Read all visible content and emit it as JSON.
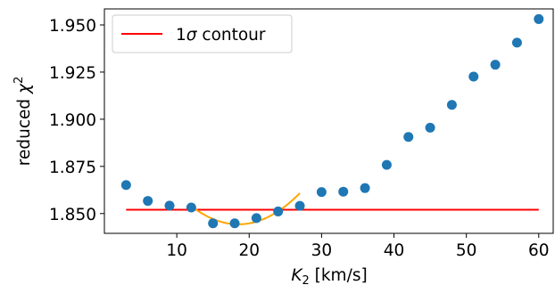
{
  "chart_data": {
    "type": "scatter",
    "title": "",
    "xlabel": {
      "italic": "K",
      "sub": "2",
      "rest": " [km/s]"
    },
    "ylabel": {
      "text": "reduced ",
      "symbol": "χ",
      "sup": "2"
    },
    "xlim": [
      0,
      62
    ],
    "ylim": [
      1.8395,
      1.9585
    ],
    "x_ticks": [
      10,
      20,
      30,
      40,
      50,
      60
    ],
    "y_ticks": [
      1.85,
      1.875,
      1.9,
      1.925,
      1.95
    ],
    "y_tick_labels": [
      "1.850",
      "1.875",
      "1.900",
      "1.925",
      "1.950"
    ],
    "points": {
      "color": "#1f77b4",
      "x": [
        3,
        6,
        9,
        12,
        15,
        18,
        21,
        24,
        27,
        30,
        33,
        36,
        39,
        42,
        45,
        48,
        51,
        54,
        57,
        60
      ],
      "y": [
        1.8651,
        1.8567,
        1.8542,
        1.8532,
        1.8448,
        1.8448,
        1.8476,
        1.8511,
        1.8541,
        1.8614,
        1.8616,
        1.8635,
        1.8758,
        1.8906,
        1.8955,
        1.9076,
        1.9226,
        1.9289,
        1.9406,
        1.9531
      ]
    },
    "fit_curve": {
      "color": "#ffa500",
      "x_range": [
        12,
        27
      ],
      "vertex": [
        18.5,
        1.8443
      ],
      "y_at_end": 1.8608
    },
    "contour_line": {
      "name_prefix": "1",
      "name_symbol": "σ",
      "name_suffix": " contour",
      "color": "#ff0000",
      "y": 1.852,
      "x_range": [
        3,
        60
      ]
    },
    "legend": {
      "placement": "upper-left"
    },
    "grid": false
  }
}
